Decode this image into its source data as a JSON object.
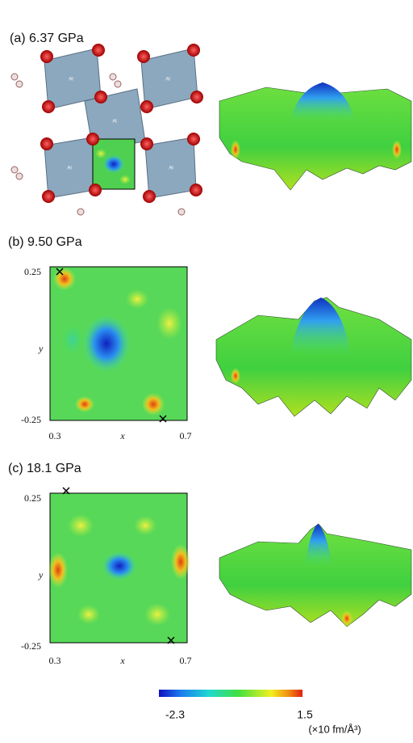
{
  "panels": [
    {
      "label": "(a)  6.37 GPa",
      "atom_label": "Al"
    },
    {
      "label": "(b) 9.50 GPa",
      "y_top": "0.25",
      "y_bottom": "-0.25",
      "y_label": "y",
      "x_left": "0.3",
      "x_label": "x",
      "x_right": "0.7"
    },
    {
      "label": "(c) 18.1 GPa",
      "y_top": "0.25",
      "y_bottom": "-0.25",
      "y_label": "y",
      "x_left": "0.3",
      "x_label": "x",
      "x_right": "0.7"
    }
  ],
  "colorbar": {
    "min": "-2.3",
    "max": "1.5",
    "unit": "(×10 fm/Å³)"
  }
}
